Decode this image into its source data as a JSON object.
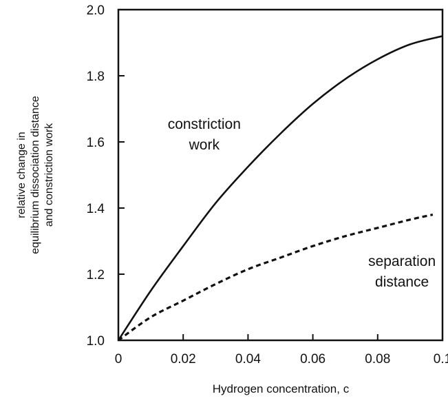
{
  "chart_data": {
    "type": "line",
    "title": "",
    "xlabel": "Hydrogen concentration, c",
    "ylabel_lines": [
      "relative change in",
      "equilibrium dissociation distance",
      "and constriction work"
    ],
    "xlim": [
      0,
      0.1
    ],
    "ylim": [
      1.0,
      2.0
    ],
    "x_ticks": [
      "0",
      "0.02",
      "0.04",
      "0.06",
      "0.08",
      "0.1"
    ],
    "y_ticks": [
      "1.0",
      "1.2",
      "1.4",
      "1.6",
      "1.8",
      "2.0"
    ],
    "grid": false,
    "legend": "none",
    "series": [
      {
        "style": "solid",
        "x": [
          0,
          0.01,
          0.02,
          0.03,
          0.04,
          0.05,
          0.06,
          0.07,
          0.08,
          0.09,
          0.1
        ],
        "y": [
          1.0,
          1.15,
          1.285,
          1.415,
          1.525,
          1.625,
          1.715,
          1.79,
          1.85,
          1.895,
          1.92
        ]
      },
      {
        "style": "dashed",
        "x": [
          0,
          0.01,
          0.02,
          0.03,
          0.04,
          0.05,
          0.06,
          0.07,
          0.08,
          0.09,
          0.097
        ],
        "y": [
          1.0,
          1.07,
          1.12,
          1.17,
          1.215,
          1.25,
          1.285,
          1.315,
          1.34,
          1.365,
          1.38
        ]
      }
    ],
    "annotations": [
      {
        "lines": [
          "constriction",
          "work"
        ],
        "x": 0.0265,
        "y": 1.64
      },
      {
        "lines": [
          "separation",
          "distance"
        ],
        "x": 0.0875,
        "y": 1.225
      }
    ]
  }
}
